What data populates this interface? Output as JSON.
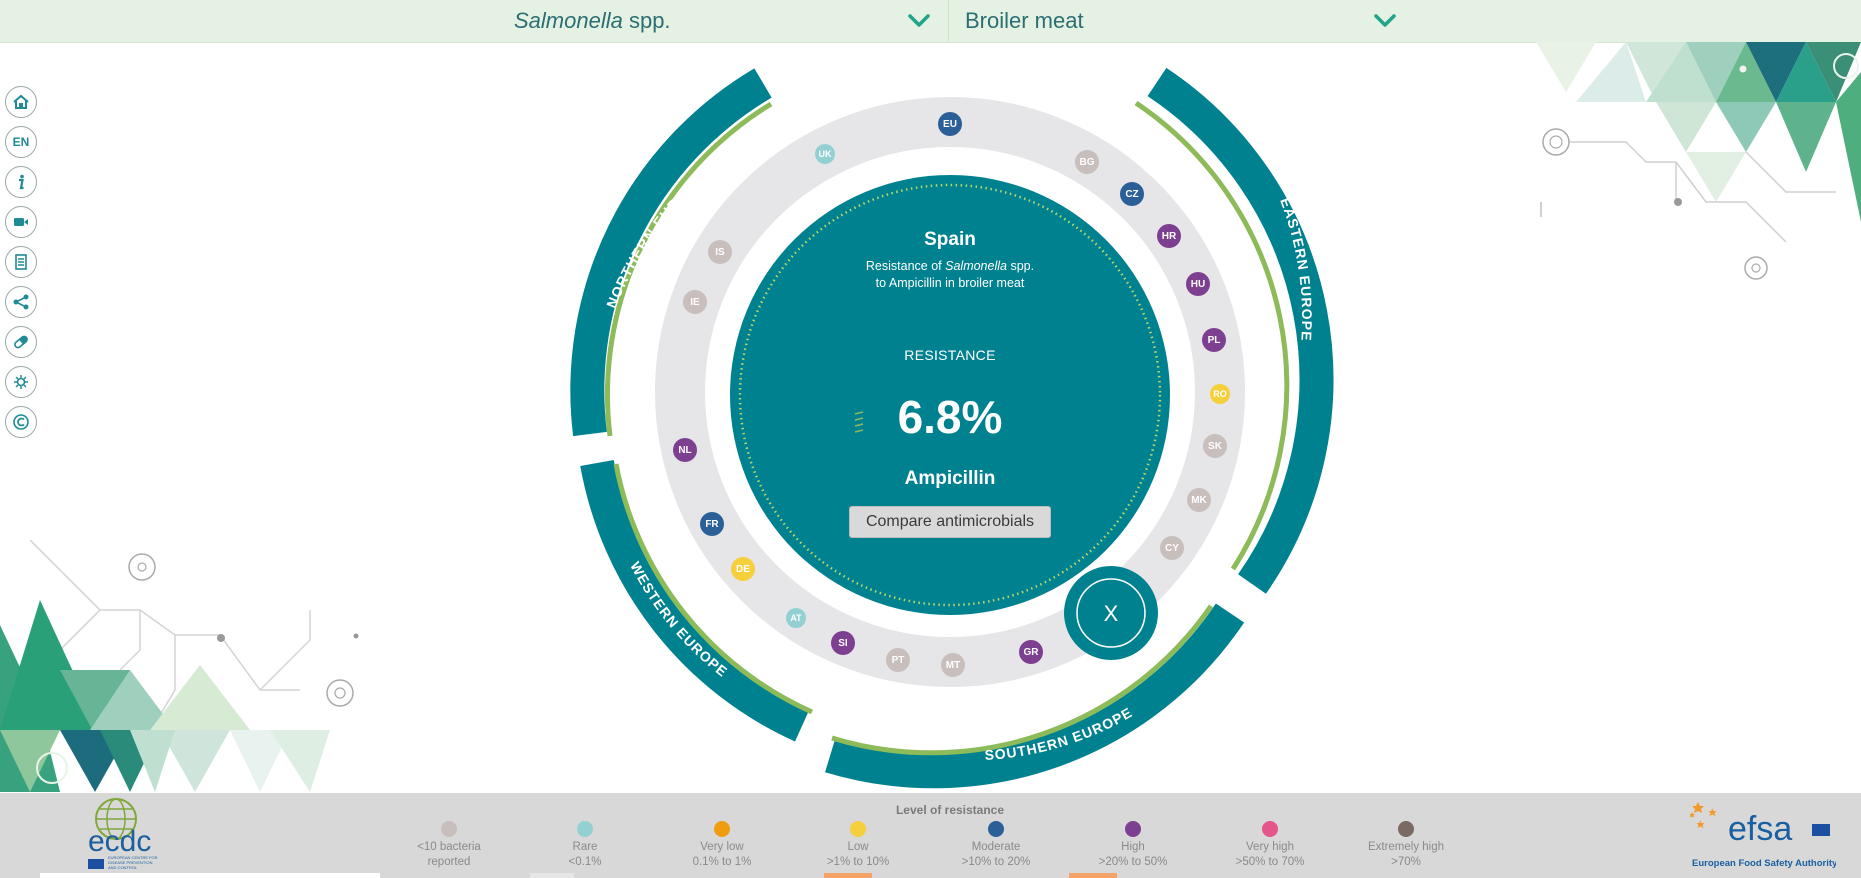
{
  "selectors": {
    "bacterium": {
      "name": "Salmonella",
      "suffix": " spp."
    },
    "food": "Broiler meat"
  },
  "nav": {
    "language": "EN",
    "icons": [
      "home-icon",
      "language-icon",
      "info-icon",
      "video-icon",
      "document-icon",
      "share-icon",
      "antimicrobial-icon",
      "bacteria-icon",
      "copyright-icon"
    ]
  },
  "center": {
    "country": "Spain",
    "subtitle_part1": "Resistance of ",
    "subtitle_bacterium": "Salmonella",
    "subtitle_part2": " spp.",
    "subtitle_line2": "to Ampicillin in broiler meat",
    "resistance_label": "RESISTANCE",
    "resistance_value": "6.8%",
    "antimicrobial": "Ampicillin",
    "compare_button": "Compare antimicrobials",
    "close_label": "X"
  },
  "regions": {
    "northern": "NORTHERN EUROPE",
    "eastern": "EASTERN EUROPE",
    "southern": "SOUTHERN EUROPE",
    "western": "WESTERN EUROPE"
  },
  "countries": [
    {
      "code": "EU",
      "level": "moderate"
    },
    {
      "code": "BG",
      "level": "insufficient"
    },
    {
      "code": "CZ",
      "level": "moderate"
    },
    {
      "code": "HR",
      "level": "high"
    },
    {
      "code": "HU",
      "level": "high"
    },
    {
      "code": "PL",
      "level": "high"
    },
    {
      "code": "RO",
      "level": "low"
    },
    {
      "code": "SK",
      "level": "insufficient"
    },
    {
      "code": "MK",
      "level": "insufficient"
    },
    {
      "code": "CY",
      "level": "insufficient"
    },
    {
      "code": "GR",
      "level": "high"
    },
    {
      "code": "MT",
      "level": "insufficient"
    },
    {
      "code": "PT",
      "level": "insufficient"
    },
    {
      "code": "SI",
      "level": "high"
    },
    {
      "code": "AT",
      "level": "rare"
    },
    {
      "code": "DE",
      "level": "low"
    },
    {
      "code": "FR",
      "level": "moderate"
    },
    {
      "code": "NL",
      "level": "high"
    },
    {
      "code": "IE",
      "level": "insufficient"
    },
    {
      "code": "IS",
      "level": "insufficient"
    },
    {
      "code": "UK",
      "level": "rare"
    }
  ],
  "legend": {
    "title": "Level of resistance",
    "items": [
      {
        "key": "insufficient",
        "color": "#c8bebb",
        "line1": "<10 bacteria",
        "line2": "reported"
      },
      {
        "key": "rare",
        "color": "#93d0d2",
        "line1": "Rare",
        "line2": "<0.1%"
      },
      {
        "key": "very-low",
        "color": "#ef9d0f",
        "line1": "Very low",
        "line2": "0.1% to 1%"
      },
      {
        "key": "low",
        "color": "#f6cf3c",
        "line1": "Low",
        "line2": ">1% to 10%"
      },
      {
        "key": "moderate",
        "color": "#2b5f97",
        "line1": "Moderate",
        "line2": ">10% to 20%"
      },
      {
        "key": "high",
        "color": "#7d3f8f",
        "line1": "High",
        "line2": ">20% to 50%"
      },
      {
        "key": "very-high",
        "color": "#e6548c",
        "line1": "Very high",
        "line2": ">50% to 70%"
      },
      {
        "key": "extremely-high",
        "color": "#7a6a63",
        "line1": "Extremely high",
        "line2": ">70%"
      }
    ]
  },
  "logos": {
    "ecdc_wordmark": "ecdc",
    "ecdc_text": "EUROPEAN CENTRE FOR DISEASE PREVENTION AND CONTROL",
    "efsa_wordmark": "efsa",
    "efsa_text": "European Food Safety Authority"
  },
  "colors": {
    "teal": "#00818f",
    "lime": "#8dbb5a",
    "ring": "#e6e6e8"
  }
}
